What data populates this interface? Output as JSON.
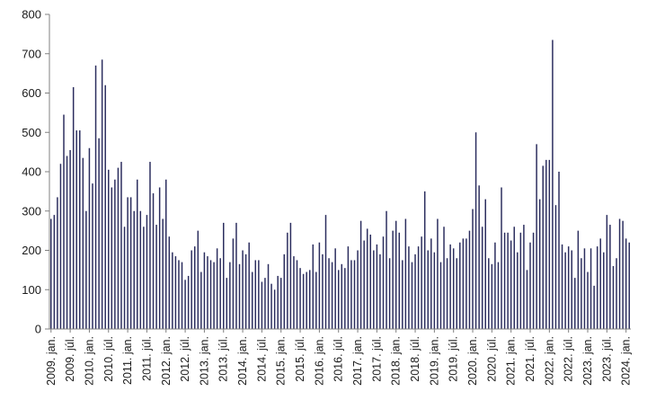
{
  "chart_data": {
    "type": "bar",
    "title": "",
    "xlabel": "",
    "ylabel": "",
    "ylim": [
      0,
      800
    ],
    "yticks": [
      0,
      100,
      200,
      300,
      400,
      500,
      600,
      700,
      800
    ],
    "grid": false,
    "legend": "none",
    "colors": {
      "bar": "#2b2d5e",
      "axis": "#808080",
      "text": "#1a1a1a"
    },
    "x_tick_labels": [
      "2009. jan.",
      "2009. júl.",
      "2010. jan.",
      "2010. júl.",
      "2011. jan.",
      "2011. júl.",
      "2012. jan.",
      "2012. júl.",
      "2013. jan.",
      "2013. júl.",
      "2014. jan.",
      "2014. júl.",
      "2015. jan.",
      "2015. júl.",
      "2016. jan.",
      "2016. júl.",
      "2017. jan.",
      "2017. júl.",
      "2018. jan.",
      "2018. júl.",
      "2019. jan.",
      "2019. júl.",
      "2020. jan.",
      "2020. júl.",
      "2021. jan.",
      "2021. júl.",
      "2022. jan.",
      "2022. júl.",
      "2023. jan.",
      "2023. júl.",
      "2024. jan."
    ],
    "start_month": "2009-01",
    "values": [
      280,
      290,
      335,
      420,
      545,
      440,
      455,
      615,
      505,
      505,
      435,
      300,
      460,
      370,
      670,
      485,
      685,
      620,
      405,
      360,
      380,
      410,
      425,
      260,
      335,
      335,
      300,
      380,
      300,
      260,
      290,
      425,
      345,
      265,
      360,
      280,
      380,
      235,
      195,
      185,
      175,
      170,
      125,
      135,
      200,
      210,
      250,
      145,
      195,
      185,
      175,
      170,
      205,
      180,
      270,
      130,
      170,
      230,
      270,
      165,
      200,
      190,
      220,
      145,
      175,
      175,
      120,
      130,
      165,
      115,
      100,
      135,
      130,
      190,
      245,
      270,
      185,
      175,
      155,
      140,
      145,
      150,
      215,
      145,
      220,
      190,
      290,
      180,
      170,
      205,
      150,
      165,
      155,
      210,
      175,
      175,
      200,
      275,
      225,
      255,
      240,
      200,
      215,
      190,
      235,
      300,
      180,
      250,
      275,
      245,
      175,
      280,
      210,
      170,
      190,
      210,
      235,
      350,
      200,
      230,
      195,
      280,
      170,
      260,
      180,
      215,
      205,
      180,
      220,
      230,
      230,
      250,
      305,
      500,
      365,
      260,
      330,
      180,
      165,
      220,
      170,
      360,
      245,
      245,
      225,
      260,
      195,
      245,
      265,
      150,
      220,
      245,
      470,
      330,
      415,
      430,
      430,
      735,
      315,
      400,
      215,
      195,
      210,
      200,
      130,
      250,
      180,
      205,
      145,
      205,
      110,
      210,
      230,
      195,
      290,
      265,
      160,
      180,
      280,
      275,
      230,
      220
    ]
  }
}
